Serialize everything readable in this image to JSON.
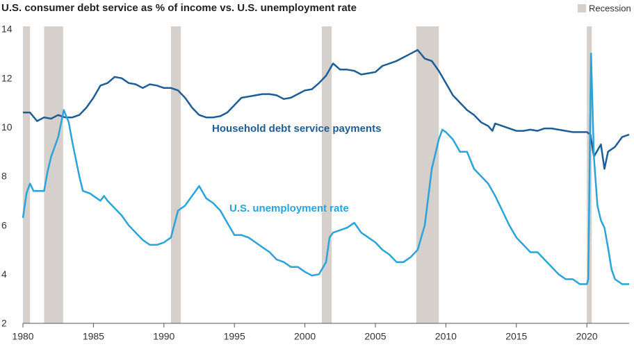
{
  "chart_data": {
    "type": "line",
    "title": "U.S. consumer debt service as % of income vs. U.S. unemployment rate",
    "xlim": [
      1980,
      2023
    ],
    "xticks": [
      1980,
      1985,
      1990,
      1995,
      2000,
      2005,
      2010,
      2015,
      2020
    ],
    "ylim": [
      2,
      14
    ],
    "yticks": [
      2,
      4,
      6,
      8,
      10,
      12,
      14
    ],
    "legend": "top-right",
    "recession": {
      "name": "Recession",
      "color": "#d5d0cb",
      "periods": [
        [
          1980.0,
          1980.5
        ],
        [
          1981.5,
          1982.85
        ],
        [
          1990.5,
          1991.2
        ],
        [
          2001.2,
          2001.9
        ],
        [
          2007.9,
          2009.5
        ],
        [
          2020.0,
          2020.35
        ]
      ]
    },
    "series": [
      {
        "name": "Household debt service payments",
        "color": "#1c5c97",
        "x": [
          1980,
          1980.5,
          1981,
          1981.5,
          1982,
          1982.5,
          1983,
          1983.5,
          1984,
          1984.5,
          1985,
          1985.5,
          1986,
          1986.5,
          1987,
          1987.5,
          1988,
          1988.5,
          1989,
          1989.5,
          1990,
          1990.5,
          1991,
          1991.5,
          1992,
          1992.5,
          1993,
          1993.5,
          1994,
          1994.5,
          1995,
          1995.5,
          1996,
          1996.5,
          1997,
          1997.5,
          1998,
          1998.5,
          1999,
          1999.5,
          2000,
          2000.5,
          2001,
          2001.5,
          2002,
          2002.5,
          2003,
          2003.5,
          2004,
          2004.5,
          2005,
          2005.5,
          2006,
          2006.5,
          2007,
          2007.5,
          2008,
          2008.5,
          2009,
          2009.5,
          2010,
          2010.5,
          2011,
          2011.5,
          2012,
          2012.5,
          2013,
          2013.3,
          2013.5,
          2014,
          2014.5,
          2015,
          2015.5,
          2016,
          2016.5,
          2017,
          2017.5,
          2018,
          2018.5,
          2019,
          2019.5,
          2020,
          2020.25,
          2020.5,
          2021,
          2021.25,
          2021.5,
          2022,
          2022.5,
          2023
        ],
        "values": [
          10.6,
          10.6,
          10.25,
          10.4,
          10.35,
          10.5,
          10.4,
          10.4,
          10.5,
          10.8,
          11.2,
          11.7,
          11.8,
          12.05,
          12.0,
          11.8,
          11.75,
          11.6,
          11.75,
          11.7,
          11.6,
          11.6,
          11.5,
          11.2,
          10.8,
          10.5,
          10.4,
          10.4,
          10.45,
          10.6,
          10.9,
          11.2,
          11.25,
          11.3,
          11.35,
          11.35,
          11.3,
          11.15,
          11.2,
          11.35,
          11.5,
          11.55,
          11.8,
          12.1,
          12.6,
          12.35,
          12.35,
          12.3,
          12.15,
          12.2,
          12.25,
          12.5,
          12.6,
          12.7,
          12.85,
          13.0,
          13.15,
          12.8,
          12.7,
          12.3,
          11.8,
          11.3,
          11.0,
          10.7,
          10.5,
          10.2,
          10.05,
          9.85,
          10.15,
          10.05,
          9.95,
          9.85,
          9.85,
          9.9,
          9.85,
          9.95,
          9.95,
          9.9,
          9.85,
          9.8,
          9.8,
          9.8,
          9.7,
          8.8,
          9.3,
          8.3,
          9.0,
          9.2,
          9.6,
          9.7
        ]
      },
      {
        "name": "U.S. unemployment rate",
        "color": "#2aa3db",
        "x": [
          1980,
          1980.25,
          1980.5,
          1980.75,
          1981,
          1981.5,
          1981.75,
          1982,
          1982.5,
          1982.9,
          1983.25,
          1983.5,
          1984,
          1984.25,
          1984.75,
          1985,
          1985.5,
          1985.75,
          1986,
          1986.5,
          1987,
          1987.5,
          1988,
          1988.5,
          1989,
          1989.5,
          1990,
          1990.5,
          1991,
          1991.5,
          1992,
          1992.5,
          1993,
          1993.5,
          1994,
          1994.5,
          1995,
          1995.5,
          1996,
          1996.5,
          1997,
          1997.5,
          1998,
          1998.5,
          1999,
          1999.5,
          2000,
          2000.5,
          2001,
          2001.5,
          2001.75,
          2002,
          2002.5,
          2003,
          2003.5,
          2004,
          2004.5,
          2005,
          2005.5,
          2006,
          2006.5,
          2007,
          2007.5,
          2008,
          2008.5,
          2009,
          2009.5,
          2009.75,
          2010,
          2010.5,
          2011,
          2011.5,
          2012,
          2012.5,
          2013,
          2013.5,
          2014,
          2014.5,
          2015,
          2015.5,
          2016,
          2016.5,
          2017,
          2017.5,
          2018,
          2018.5,
          2019,
          2019.5,
          2020,
          2020.1,
          2020.3,
          2020.5,
          2020.75,
          2021,
          2021.25,
          2021.5,
          2021.75,
          2022,
          2022.5,
          2023
        ],
        "values": [
          6.3,
          7.3,
          7.7,
          7.4,
          7.4,
          7.4,
          8.2,
          8.8,
          9.6,
          10.7,
          10.2,
          9.4,
          8.0,
          7.4,
          7.3,
          7.2,
          7.0,
          7.2,
          7.0,
          6.7,
          6.4,
          6.0,
          5.7,
          5.4,
          5.2,
          5.2,
          5.3,
          5.5,
          6.6,
          6.8,
          7.2,
          7.6,
          7.1,
          6.9,
          6.6,
          6.1,
          5.6,
          5.6,
          5.5,
          5.3,
          5.1,
          4.9,
          4.6,
          4.5,
          4.3,
          4.3,
          4.1,
          3.95,
          4.0,
          4.5,
          5.5,
          5.7,
          5.8,
          5.9,
          6.1,
          5.7,
          5.5,
          5.3,
          5.0,
          4.8,
          4.5,
          4.5,
          4.7,
          5.0,
          6.0,
          8.3,
          9.5,
          9.9,
          9.8,
          9.5,
          9.0,
          9.0,
          8.3,
          8.0,
          7.7,
          7.2,
          6.6,
          6.0,
          5.5,
          5.2,
          4.9,
          4.9,
          4.6,
          4.3,
          4.0,
          3.8,
          3.8,
          3.6,
          3.6,
          3.8,
          13.0,
          8.8,
          6.8,
          6.2,
          5.9,
          5.1,
          4.2,
          3.8,
          3.6,
          3.6
        ]
      }
    ]
  }
}
